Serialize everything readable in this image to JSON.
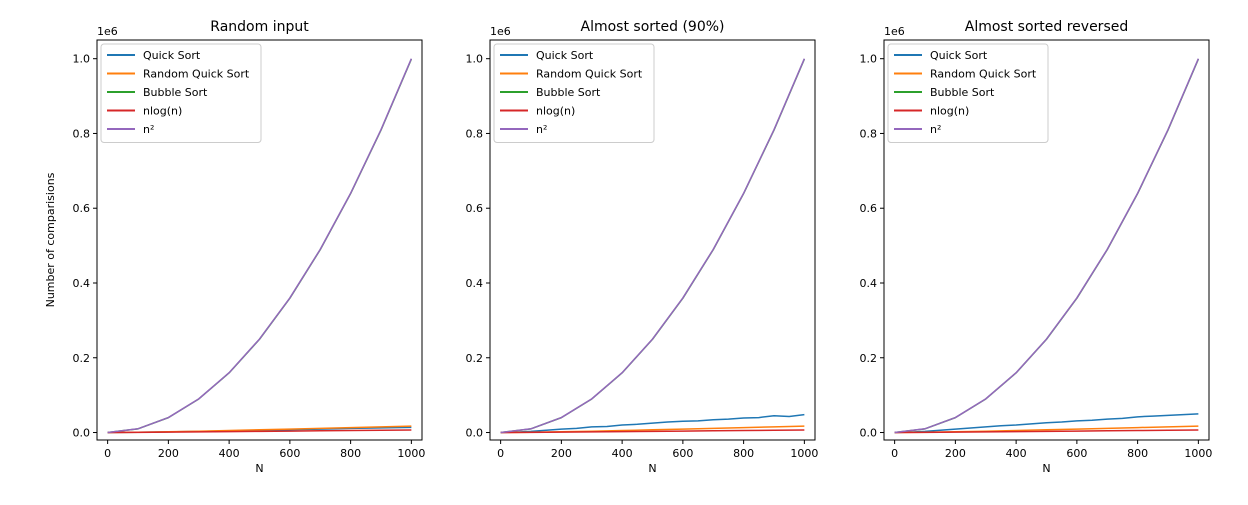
{
  "colors": {
    "quick": "#1f77b4",
    "random_quick": "#ff7f0e",
    "bubble": "#2ca02c",
    "nlogn": "#d62728",
    "n2": "#9467bd"
  },
  "chart_data": [
    {
      "type": "line",
      "title": "Random input",
      "xlabel": "N",
      "ylabel": "Number of comparisions",
      "offset_text": "1e6",
      "xlim": [
        -35,
        1035
      ],
      "ylim": [
        -0.02,
        1.05
      ],
      "xticks": [
        0,
        200,
        400,
        600,
        800,
        1000
      ],
      "xtick_labels": [
        "0",
        "200",
        "400",
        "600",
        "800",
        "1000"
      ],
      "yticks": [
        0.0,
        0.2,
        0.4,
        0.6,
        0.8,
        1.0
      ],
      "ytick_labels": [
        "0.0",
        "0.2",
        "0.4",
        "0.6",
        "0.8",
        "1.0"
      ],
      "legend_position": "top-left",
      "series": [
        {
          "name": "Quick Sort",
          "color_key": "quick",
          "x": [
            0,
            100,
            200,
            300,
            400,
            500,
            600,
            700,
            800,
            900,
            1000
          ],
          "y": [
            0.0,
            0.0007,
            0.0017,
            0.003,
            0.0044,
            0.0059,
            0.0073,
            0.0092,
            0.011,
            0.0125,
            0.0138
          ]
        },
        {
          "name": "Random Quick Sort",
          "color_key": "random_quick",
          "x": [
            0,
            100,
            200,
            300,
            400,
            500,
            600,
            700,
            800,
            900,
            1000
          ],
          "y": [
            0.0,
            0.0008,
            0.0019,
            0.0035,
            0.0053,
            0.0073,
            0.0092,
            0.0112,
            0.0132,
            0.0152,
            0.0172
          ]
        },
        {
          "name": "Bubble Sort",
          "color_key": "bubble",
          "x": [
            0,
            100,
            200,
            300,
            400,
            500,
            600,
            700,
            800,
            900,
            1000
          ],
          "y": [
            0.0,
            0.0099,
            0.0398,
            0.0897,
            0.1596,
            0.2495,
            0.3594,
            0.4893,
            0.6392,
            0.8091,
            0.999
          ]
        },
        {
          "name": "nlog(n)",
          "color_key": "nlogn",
          "x": [
            0,
            100,
            200,
            300,
            400,
            500,
            600,
            700,
            800,
            900,
            1000
          ],
          "y": [
            0.0,
            0.0005,
            0.0011,
            0.0017,
            0.0024,
            0.0031,
            0.0038,
            0.0046,
            0.0053,
            0.0061,
            0.0069
          ]
        },
        {
          "name": "n²",
          "color_key": "n2",
          "x": [
            0,
            100,
            200,
            300,
            400,
            500,
            600,
            700,
            800,
            900,
            1000
          ],
          "y": [
            0.0,
            0.01,
            0.04,
            0.09,
            0.16,
            0.25,
            0.36,
            0.49,
            0.64,
            0.81,
            1.0
          ]
        }
      ]
    },
    {
      "type": "line",
      "title": "Almost sorted (90%)",
      "xlabel": "N",
      "ylabel": "",
      "offset_text": "1e6",
      "xlim": [
        -35,
        1035
      ],
      "ylim": [
        -0.02,
        1.05
      ],
      "xticks": [
        0,
        200,
        400,
        600,
        800,
        1000
      ],
      "xtick_labels": [
        "0",
        "200",
        "400",
        "600",
        "800",
        "1000"
      ],
      "yticks": [
        0.0,
        0.2,
        0.4,
        0.6,
        0.8,
        1.0
      ],
      "ytick_labels": [
        "0.0",
        "0.2",
        "0.4",
        "0.6",
        "0.8",
        "1.0"
      ],
      "legend_position": "top-left",
      "series": [
        {
          "name": "Quick Sort",
          "color_key": "quick",
          "x": [
            0,
            50,
            100,
            150,
            200,
            250,
            300,
            350,
            400,
            450,
            500,
            550,
            600,
            650,
            700,
            750,
            800,
            850,
            900,
            950,
            1000
          ],
          "y": [
            0.0,
            0.001,
            0.003,
            0.006,
            0.009,
            0.011,
            0.015,
            0.016,
            0.02,
            0.022,
            0.025,
            0.028,
            0.03,
            0.031,
            0.034,
            0.036,
            0.039,
            0.04,
            0.045,
            0.043,
            0.048
          ]
        },
        {
          "name": "Random Quick Sort",
          "color_key": "random_quick",
          "x": [
            0,
            100,
            200,
            300,
            400,
            500,
            600,
            700,
            800,
            900,
            1000
          ],
          "y": [
            0.0,
            0.0008,
            0.0019,
            0.0035,
            0.0053,
            0.0073,
            0.0092,
            0.0112,
            0.0132,
            0.0152,
            0.0172
          ]
        },
        {
          "name": "Bubble Sort",
          "color_key": "bubble",
          "x": [
            0,
            100,
            200,
            300,
            400,
            500,
            600,
            700,
            800,
            900,
            1000
          ],
          "y": [
            0.0,
            0.0099,
            0.0398,
            0.0897,
            0.1596,
            0.2495,
            0.3594,
            0.4893,
            0.6392,
            0.8091,
            0.999
          ]
        },
        {
          "name": "nlog(n)",
          "color_key": "nlogn",
          "x": [
            0,
            100,
            200,
            300,
            400,
            500,
            600,
            700,
            800,
            900,
            1000
          ],
          "y": [
            0.0,
            0.0005,
            0.0011,
            0.0017,
            0.0024,
            0.0031,
            0.0038,
            0.0046,
            0.0053,
            0.0061,
            0.0069
          ]
        },
        {
          "name": "n²",
          "color_key": "n2",
          "x": [
            0,
            100,
            200,
            300,
            400,
            500,
            600,
            700,
            800,
            900,
            1000
          ],
          "y": [
            0.0,
            0.01,
            0.04,
            0.09,
            0.16,
            0.25,
            0.36,
            0.49,
            0.64,
            0.81,
            1.0
          ]
        }
      ]
    },
    {
      "type": "line",
      "title": "Almost sorted reversed",
      "xlabel": "N",
      "ylabel": "",
      "offset_text": "1e6",
      "xlim": [
        -35,
        1035
      ],
      "ylim": [
        -0.02,
        1.05
      ],
      "xticks": [
        0,
        200,
        400,
        600,
        800,
        1000
      ],
      "xtick_labels": [
        "0",
        "200",
        "400",
        "600",
        "800",
        "1000"
      ],
      "yticks": [
        0.0,
        0.2,
        0.4,
        0.6,
        0.8,
        1.0
      ],
      "ytick_labels": [
        "0.0",
        "0.2",
        "0.4",
        "0.6",
        "0.8",
        "1.0"
      ],
      "legend_position": "top-left",
      "series": [
        {
          "name": "Quick Sort",
          "color_key": "quick",
          "x": [
            0,
            50,
            100,
            150,
            200,
            250,
            300,
            350,
            400,
            450,
            500,
            550,
            600,
            650,
            700,
            750,
            800,
            850,
            900,
            950,
            1000
          ],
          "y": [
            0.0,
            0.001,
            0.003,
            0.006,
            0.009,
            0.012,
            0.015,
            0.018,
            0.02,
            0.023,
            0.026,
            0.028,
            0.031,
            0.033,
            0.036,
            0.038,
            0.042,
            0.044,
            0.046,
            0.048,
            0.05
          ]
        },
        {
          "name": "Random Quick Sort",
          "color_key": "random_quick",
          "x": [
            0,
            100,
            200,
            300,
            400,
            500,
            600,
            700,
            800,
            900,
            1000
          ],
          "y": [
            0.0,
            0.0008,
            0.0019,
            0.0035,
            0.0053,
            0.0073,
            0.0092,
            0.0112,
            0.0132,
            0.0152,
            0.0172
          ]
        },
        {
          "name": "Bubble Sort",
          "color_key": "bubble",
          "x": [
            0,
            100,
            200,
            300,
            400,
            500,
            600,
            700,
            800,
            900,
            1000
          ],
          "y": [
            0.0,
            0.0099,
            0.0398,
            0.0897,
            0.1596,
            0.2495,
            0.3594,
            0.4893,
            0.6392,
            0.8091,
            0.999
          ]
        },
        {
          "name": "nlog(n)",
          "color_key": "nlogn",
          "x": [
            0,
            100,
            200,
            300,
            400,
            500,
            600,
            700,
            800,
            900,
            1000
          ],
          "y": [
            0.0,
            0.0005,
            0.0011,
            0.0017,
            0.0024,
            0.0031,
            0.0038,
            0.0046,
            0.0053,
            0.0061,
            0.0069
          ]
        },
        {
          "name": "n²",
          "color_key": "n2",
          "x": [
            0,
            100,
            200,
            300,
            400,
            500,
            600,
            700,
            800,
            900,
            1000
          ],
          "y": [
            0.0,
            0.01,
            0.04,
            0.09,
            0.16,
            0.25,
            0.36,
            0.49,
            0.64,
            0.81,
            1.0
          ]
        }
      ]
    }
  ]
}
